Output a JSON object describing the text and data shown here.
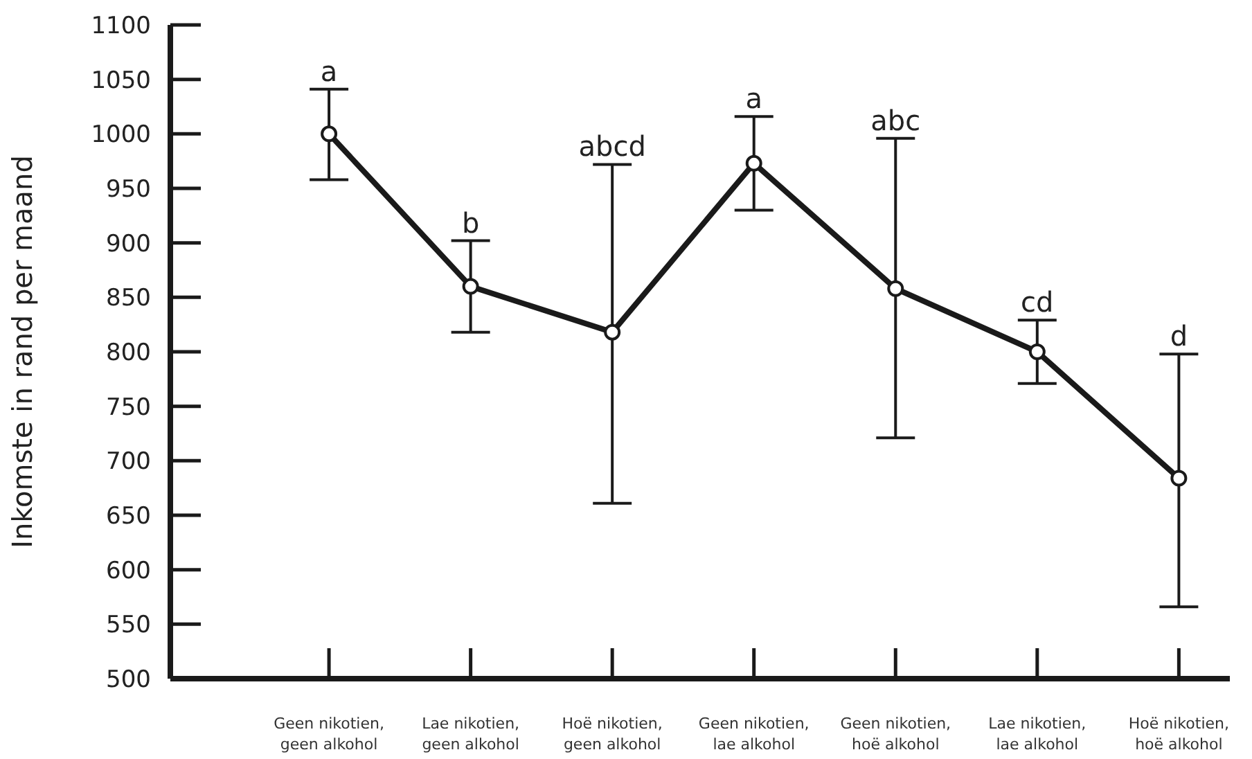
{
  "chart_data": {
    "type": "line",
    "ylabel": "Inkomste in rand per maand",
    "categories": [
      "Geen nikotien, geen alkohol",
      "Lae nikotien, geen alkohol",
      "Hoë nikotien, geen alkohol",
      "Geen nikotien, lae alkohol",
      "Geen nikotien, hoë alkohol",
      "Lae nikotien, lae alkohol",
      "Hoë nikotien, hoë alkohol"
    ],
    "series": [
      {
        "color": "#1a1a1a",
        "values": [
          1000,
          860,
          818,
          973,
          858,
          800,
          684
        ],
        "errors": [
          [
            958,
            1041
          ],
          [
            818,
            902
          ],
          [
            661,
            972
          ],
          [
            930,
            1016
          ],
          [
            721,
            996
          ],
          [
            771,
            829
          ],
          [
            566,
            798
          ]
        ]
      }
    ],
    "ylim": [
      500,
      1100
    ],
    "yticks": [
      500,
      550,
      600,
      650,
      700,
      750,
      800,
      850,
      900,
      950,
      1000,
      1050,
      1100
    ],
    "grid": false,
    "legend": false,
    "marker": "circle",
    "line_style": "solid",
    "annotations": [
      {
        "text": "a",
        "x": "Geen nikotien, geen alkohol",
        "y": 1041
      },
      {
        "text": "b",
        "x": "Lae nikotien, geen alkohol",
        "y": 902
      },
      {
        "text": "abcd",
        "x": "Hoë nikotien, geen alkohol",
        "y": 972
      },
      {
        "text": "a",
        "x": "Geen nikotien, lae alkohol",
        "y": 1016
      },
      {
        "text": "abc",
        "x": "Geen nikotien, hoë alkohol",
        "y": 996
      },
      {
        "text": "cd",
        "x": "Lae nikotien, lae alkohol",
        "y": 829
      },
      {
        "text": "d",
        "x": "Hoë nikotien, hoë alkohol",
        "y": 798
      }
    ]
  }
}
